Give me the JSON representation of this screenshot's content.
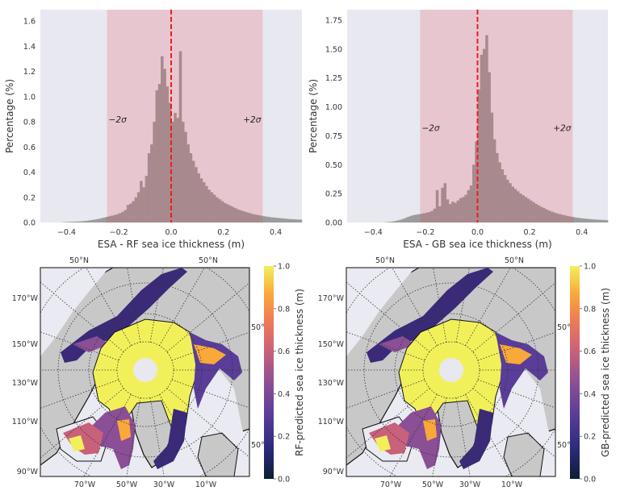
{
  "chart_data": [
    {
      "type": "bar",
      "panel": "top-left",
      "title": "",
      "xlabel": "ESA - RF sea ice thickness (m)",
      "ylabel": "Percentage (%)",
      "xlim": [
        -0.5,
        0.5
      ],
      "ylim": [
        0,
        1.69
      ],
      "xticks": [
        "−0.4",
        "−0.2",
        "0.0",
        "0.2",
        "0.4"
      ],
      "xtick_values": [
        -0.4,
        -0.2,
        0.0,
        0.2,
        0.4
      ],
      "yticks": [
        "0.0",
        "0.2",
        "0.4",
        "0.6",
        "0.8",
        "1.0",
        "1.2",
        "1.4",
        "1.6"
      ],
      "ytick_values": [
        0,
        0.2,
        0.4,
        0.6,
        0.8,
        1.0,
        1.2,
        1.4,
        1.6
      ],
      "grid": false,
      "band": {
        "from": -0.245,
        "to": 0.35,
        "color": "#e8c6cf"
      },
      "band_labels": {
        "minus": "−2σ",
        "plus": "+2σ",
        "y": 0.82
      },
      "vline": {
        "x": 0.0,
        "color": "#ee1c1c",
        "style": "dashed"
      },
      "bin_width": 0.01,
      "x": [
        -0.495,
        -0.485,
        -0.475,
        -0.465,
        -0.455,
        -0.445,
        -0.435,
        -0.425,
        -0.415,
        -0.405,
        -0.395,
        -0.385,
        -0.375,
        -0.365,
        -0.355,
        -0.345,
        -0.335,
        -0.325,
        -0.315,
        -0.305,
        -0.295,
        -0.285,
        -0.275,
        -0.265,
        -0.255,
        -0.245,
        -0.235,
        -0.225,
        -0.215,
        -0.205,
        -0.195,
        -0.185,
        -0.175,
        -0.165,
        -0.155,
        -0.145,
        -0.135,
        -0.125,
        -0.115,
        -0.105,
        -0.095,
        -0.085,
        -0.075,
        -0.065,
        -0.055,
        -0.045,
        -0.035,
        -0.025,
        -0.015,
        -0.005,
        0.005,
        0.015,
        0.025,
        0.035,
        0.045,
        0.055,
        0.065,
        0.075,
        0.085,
        0.095,
        0.105,
        0.115,
        0.125,
        0.135,
        0.145,
        0.155,
        0.165,
        0.175,
        0.185,
        0.195,
        0.205,
        0.215,
        0.225,
        0.235,
        0.245,
        0.255,
        0.265,
        0.275,
        0.285,
        0.295,
        0.305,
        0.315,
        0.325,
        0.335,
        0.345,
        0.355,
        0.365,
        0.375,
        0.385,
        0.395,
        0.405,
        0.415,
        0.425,
        0.435,
        0.445,
        0.455,
        0.465,
        0.475,
        0.485,
        0.495
      ],
      "values": [
        0.0,
        0.0,
        0.0,
        0.0,
        0.0,
        0.0,
        0.0,
        0.0,
        0.002,
        0.003,
        0.004,
        0.005,
        0.006,
        0.007,
        0.008,
        0.009,
        0.011,
        0.013,
        0.016,
        0.019,
        0.022,
        0.026,
        0.03,
        0.035,
        0.04,
        0.045,
        0.05,
        0.055,
        0.06,
        0.066,
        0.075,
        0.085,
        0.1,
        0.14,
        0.15,
        0.17,
        0.2,
        0.24,
        0.33,
        0.28,
        0.37,
        0.55,
        0.62,
        0.8,
        1.05,
        1.1,
        1.32,
        1.22,
        1.08,
        0.95,
        0.8,
        0.87,
        0.83,
        1.36,
        0.8,
        0.72,
        0.62,
        0.55,
        0.49,
        0.44,
        0.39,
        0.35,
        0.32,
        0.29,
        0.26,
        0.24,
        0.22,
        0.2,
        0.185,
        0.17,
        0.155,
        0.145,
        0.135,
        0.125,
        0.115,
        0.105,
        0.098,
        0.09,
        0.084,
        0.078,
        0.072,
        0.066,
        0.062,
        0.058,
        0.054,
        0.05,
        0.047,
        0.044,
        0.041,
        0.039,
        0.037,
        0.035,
        0.033,
        0.031,
        0.029,
        0.027,
        0.026,
        0.025,
        0.024,
        0.023
      ]
    },
    {
      "type": "bar",
      "panel": "top-right",
      "title": "",
      "xlabel": "ESA - GB sea ice thickness (m)",
      "ylabel": "Percentage (%)",
      "xlim": [
        -0.5,
        0.5
      ],
      "ylim": [
        0,
        1.84
      ],
      "xticks": [
        "−0.4",
        "−0.2",
        "0.0",
        "0.2",
        "0.4"
      ],
      "xtick_values": [
        -0.4,
        -0.2,
        0.0,
        0.2,
        0.4
      ],
      "yticks": [
        "0.00",
        "0.25",
        "0.50",
        "0.75",
        "1.00",
        "1.25",
        "1.50",
        "1.75"
      ],
      "ytick_values": [
        0,
        0.25,
        0.5,
        0.75,
        1.0,
        1.25,
        1.5,
        1.75
      ],
      "grid": false,
      "band": {
        "from": -0.22,
        "to": 0.365,
        "color": "#e8c6cf"
      },
      "band_labels": {
        "minus": "−2σ",
        "plus": "+2σ",
        "y": 0.82
      },
      "vline": {
        "x": 0.0,
        "color": "#ee1c1c",
        "style": "dashed"
      },
      "bin_width": 0.01,
      "x": [
        -0.495,
        -0.485,
        -0.475,
        -0.465,
        -0.455,
        -0.445,
        -0.435,
        -0.425,
        -0.415,
        -0.405,
        -0.395,
        -0.385,
        -0.375,
        -0.365,
        -0.355,
        -0.345,
        -0.335,
        -0.325,
        -0.315,
        -0.305,
        -0.295,
        -0.285,
        -0.275,
        -0.265,
        -0.255,
        -0.245,
        -0.235,
        -0.225,
        -0.215,
        -0.205,
        -0.195,
        -0.185,
        -0.175,
        -0.165,
        -0.155,
        -0.145,
        -0.135,
        -0.125,
        -0.115,
        -0.105,
        -0.095,
        -0.085,
        -0.075,
        -0.065,
        -0.055,
        -0.045,
        -0.035,
        -0.025,
        -0.015,
        -0.005,
        0.005,
        0.015,
        0.025,
        0.035,
        0.045,
        0.055,
        0.065,
        0.075,
        0.085,
        0.095,
        0.105,
        0.115,
        0.125,
        0.135,
        0.145,
        0.155,
        0.165,
        0.175,
        0.185,
        0.195,
        0.205,
        0.215,
        0.225,
        0.235,
        0.245,
        0.255,
        0.265,
        0.275,
        0.285,
        0.295,
        0.305,
        0.315,
        0.325,
        0.335,
        0.345,
        0.355,
        0.365,
        0.375,
        0.385,
        0.395,
        0.405,
        0.415,
        0.425,
        0.435,
        0.445,
        0.455,
        0.465,
        0.475,
        0.485,
        0.495
      ],
      "values": [
        0.0,
        0.0,
        0.0,
        0.0,
        0.0,
        0.0,
        0.0,
        0.0,
        0.0,
        0.0,
        0.0,
        0.0,
        0.0,
        0.0,
        0.002,
        0.004,
        0.006,
        0.009,
        0.013,
        0.018,
        0.024,
        0.031,
        0.04,
        0.05,
        0.058,
        0.064,
        0.068,
        0.072,
        0.075,
        0.08,
        0.085,
        0.09,
        0.1,
        0.12,
        0.28,
        0.14,
        0.3,
        0.34,
        0.2,
        0.16,
        0.18,
        0.17,
        0.19,
        0.21,
        0.22,
        0.24,
        0.28,
        0.32,
        0.5,
        0.7,
        1.15,
        1.45,
        1.5,
        1.62,
        1.3,
        0.95,
        0.72,
        0.6,
        0.52,
        0.46,
        0.41,
        0.37,
        0.34,
        0.31,
        0.29,
        0.27,
        0.25,
        0.235,
        0.22,
        0.205,
        0.19,
        0.175,
        0.16,
        0.148,
        0.135,
        0.124,
        0.113,
        0.103,
        0.094,
        0.086,
        0.079,
        0.073,
        0.067,
        0.062,
        0.057,
        0.052,
        0.048,
        0.044,
        0.041,
        0.038,
        0.035,
        0.033,
        0.031,
        0.029,
        0.027,
        0.025,
        0.024,
        0.023,
        0.022,
        0.021
      ]
    },
    {
      "type": "heatmap",
      "panel": "bottom-left",
      "title": "",
      "projection": "north-polar-stereographic",
      "colorbar_label": "RF-predicted sea ice thickness (m)",
      "colorbar_range": [
        0.0,
        1.0
      ],
      "colorbar_ticks": [
        "0.0",
        "0.2",
        "0.4",
        "0.6",
        "0.8",
        "1.0"
      ],
      "colormap": [
        "#0b1e33",
        "#2b2a7a",
        "#5a3d98",
        "#8a4f95",
        "#c8617a",
        "#f07c56",
        "#f9a93a",
        "#f2f05a"
      ],
      "lat_labels": [
        "50°N",
        "50°N",
        "50°",
        "50°"
      ],
      "lon_labels_left": [
        "170°W",
        "150°W",
        "130°W",
        "110°W",
        "90°W"
      ],
      "lon_labels_bottom": [
        "70°W",
        "50°W",
        "30°W",
        "10°W"
      ]
    },
    {
      "type": "heatmap",
      "panel": "bottom-right",
      "title": "",
      "projection": "north-polar-stereographic",
      "colorbar_label": "GB-predicted sea ice thickness (m)",
      "colorbar_range": [
        0.0,
        1.0
      ],
      "colorbar_ticks": [
        "0.0",
        "0.2",
        "0.4",
        "0.6",
        "0.8",
        "1.0"
      ],
      "colormap": [
        "#0b1e33",
        "#2b2a7a",
        "#5a3d98",
        "#8a4f95",
        "#c8617a",
        "#f07c56",
        "#f9a93a",
        "#f2f05a"
      ],
      "lat_labels": [
        "50°N",
        "50°N",
        "50°",
        "50°"
      ],
      "lon_labels_left": [
        "170°W",
        "150°W",
        "130°W",
        "110°W",
        "90°W"
      ],
      "lon_labels_bottom": [
        "70°W",
        "50°W",
        "30°W",
        "10°W"
      ]
    }
  ],
  "colors": {
    "axes_bg": "#e8e8f0",
    "band": "#e8c6cf",
    "hist_in_band": "#a88a8e",
    "hist_out_band": "#9c9c9c",
    "vline": "#ee1c1c",
    "land": "#c8c8c8",
    "ocean": "#eaeaf2",
    "pole": "#e8e8f0"
  }
}
